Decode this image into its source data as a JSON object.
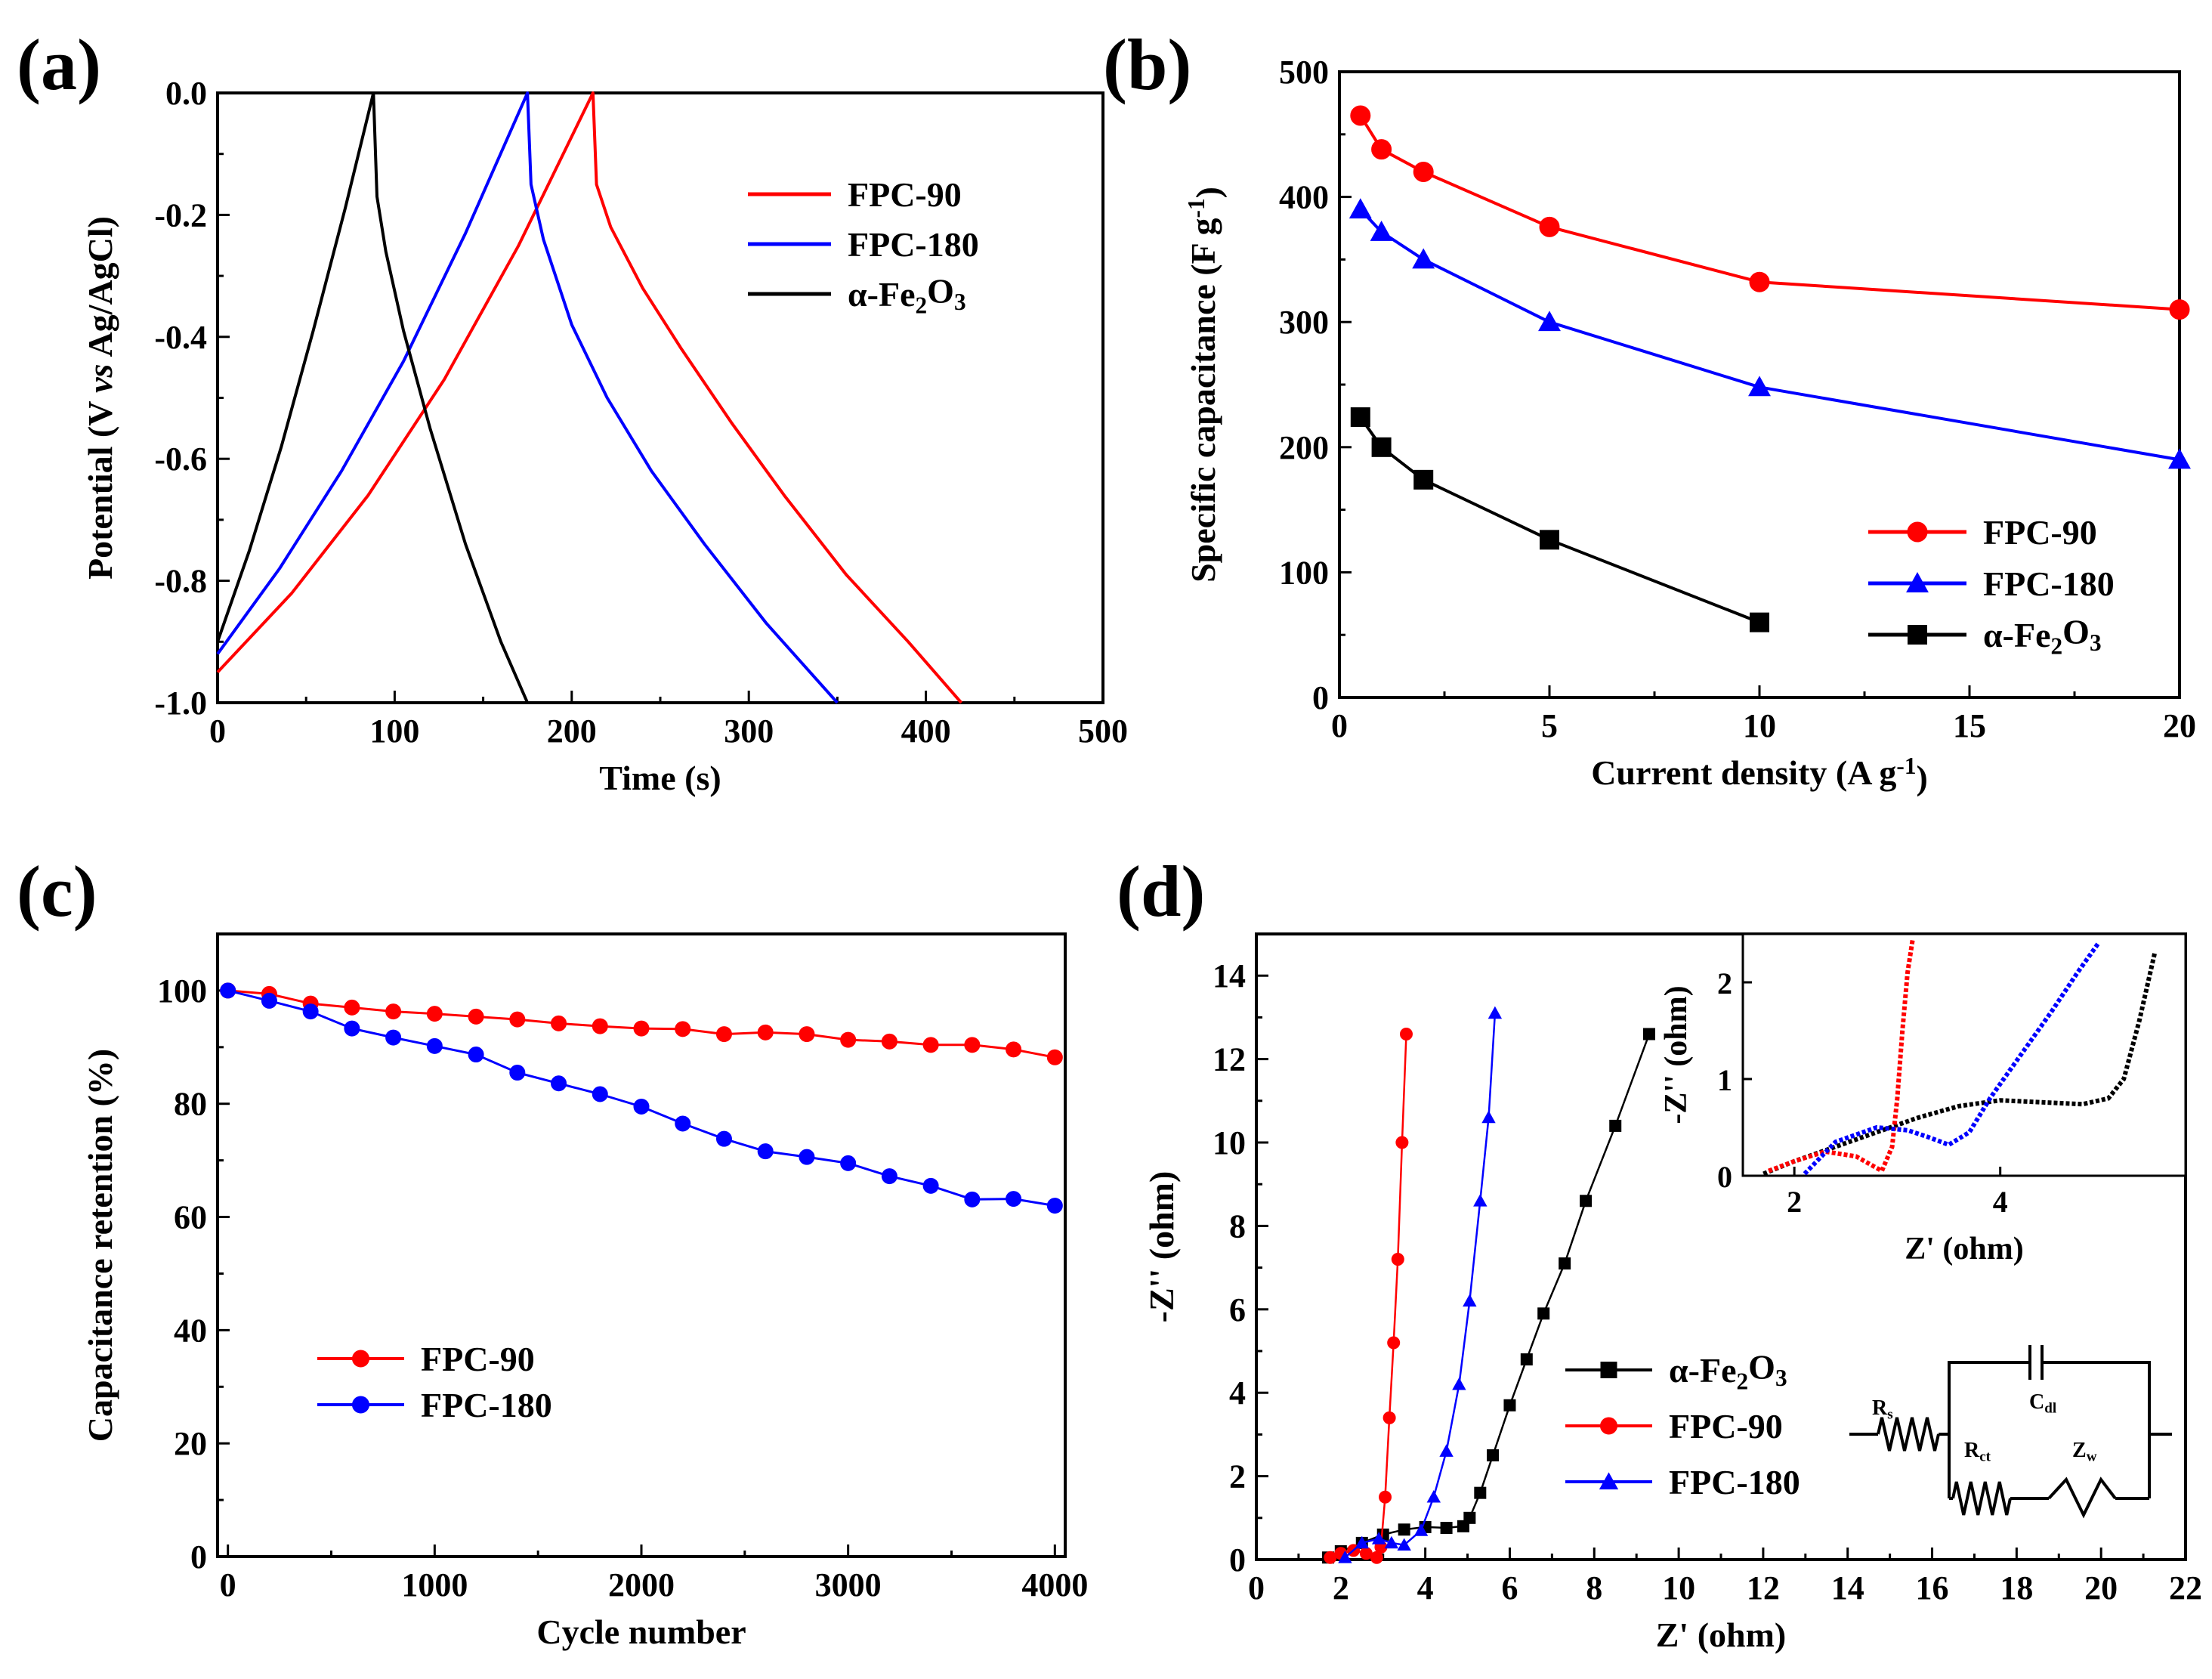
{
  "panels": [
    {
      "id": "a",
      "label": "(a)",
      "chart_data": {
        "type": "line",
        "title": "",
        "xlabel": "Time (s)",
        "ylabel": "Potential (V vs Ag/AgCl)",
        "xlim": [
          0,
          500
        ],
        "ylim": [
          -1.0,
          0.0
        ],
        "xticks": [
          "0",
          "100",
          "200",
          "300",
          "400",
          "500"
        ],
        "yticks": [
          "0.0",
          "-0.2",
          "-0.4",
          "-0.6",
          "-0.8",
          "-1.0"
        ],
        "legend_position": "upper-right",
        "series": [
          {
            "name": "FPC-90",
            "color": "#ff0000",
            "marker": "none",
            "x": [
              0,
              42,
              85,
              128,
              170,
              212,
              214,
              222,
              240,
              262,
              290,
              320,
              355,
              390,
              420
            ],
            "y": [
              -0.95,
              -0.82,
              -0.66,
              -0.47,
              -0.25,
              0.0,
              -0.15,
              -0.22,
              -0.32,
              -0.42,
              -0.54,
              -0.66,
              -0.79,
              -0.9,
              -1.0
            ]
          },
          {
            "name": "FPC-180",
            "color": "#0000ff",
            "marker": "none",
            "x": [
              0,
              35,
              70,
              105,
              140,
              175,
              177,
              184,
              200,
              220,
              245,
              275,
              310,
              350
            ],
            "y": [
              -0.92,
              -0.78,
              -0.62,
              -0.44,
              -0.23,
              0.0,
              -0.15,
              -0.24,
              -0.38,
              -0.5,
              -0.62,
              -0.74,
              -0.87,
              -1.0
            ]
          },
          {
            "name": "α-Fe2O3",
            "color": "#000000",
            "marker": "none",
            "x": [
              0,
              18,
              36,
              54,
              72,
              88,
              90,
              95,
              105,
              120,
              140,
              160,
              175
            ],
            "y": [
              -0.9,
              -0.75,
              -0.58,
              -0.39,
              -0.19,
              0.0,
              -0.17,
              -0.26,
              -0.39,
              -0.55,
              -0.74,
              -0.9,
              -1.0
            ]
          }
        ]
      }
    },
    {
      "id": "b",
      "label": "(b)",
      "chart_data": {
        "type": "line",
        "title": "",
        "xlabel": "Current density (A g-1)",
        "ylabel": "Specific capacitance (F g-1)",
        "xlim": [
          0,
          20
        ],
        "ylim": [
          0,
          500
        ],
        "xticks": [
          "0",
          "5",
          "10",
          "15",
          "20"
        ],
        "yticks": [
          "0",
          "100",
          "200",
          "300",
          "400",
          "500"
        ],
        "legend_position": "lower-right",
        "series": [
          {
            "name": "FPC-90",
            "color": "#ff0000",
            "marker": "circle",
            "x": [
              0.5,
              1,
              2,
              5,
              10,
              20
            ],
            "y": [
              465,
              438,
              420,
              376,
              332,
              310
            ]
          },
          {
            "name": "FPC-180",
            "color": "#0000ff",
            "marker": "triangle",
            "x": [
              0.5,
              1,
              2,
              5,
              10,
              20
            ],
            "y": [
              390,
              372,
              350,
              300,
              248,
              190
            ]
          },
          {
            "name": "α-Fe2O3",
            "color": "#000000",
            "marker": "square",
            "x": [
              0.5,
              1,
              2,
              5,
              10
            ],
            "y": [
              224,
              200,
              174,
              126,
              60
            ]
          }
        ]
      }
    },
    {
      "id": "c",
      "label": "(c)",
      "chart_data": {
        "type": "line",
        "title": "",
        "xlabel": "Cycle number",
        "ylabel": "Capacitance retention (%)",
        "xlim": [
          -50,
          4050
        ],
        "ylim": [
          0,
          110
        ],
        "xticks": [
          "0",
          "1000",
          "2000",
          "3000",
          "4000"
        ],
        "yticks": [
          "0",
          "20",
          "40",
          "60",
          "80",
          "100"
        ],
        "legend_position": "lower-left",
        "series": [
          {
            "name": "FPC-90",
            "color": "#ff0000",
            "marker": "circle",
            "x": [
              0,
              200,
              400,
              600,
              800,
              1000,
              1200,
              1400,
              1600,
              1800,
              2000,
              2200,
              2400,
              2600,
              2800,
              3000,
              3200,
              3400,
              3600,
              3800,
              4000
            ],
            "y": [
              100,
              99.4,
              97.7,
              97,
              96.3,
              95.9,
              95.4,
              94.9,
              94.2,
              93.7,
              93.3,
              93.2,
              92.3,
              92.6,
              92.3,
              91.3,
              91,
              90.4,
              90.4,
              89.6,
              88.2
            ]
          },
          {
            "name": "FPC-180",
            "color": "#0000ff",
            "marker": "circle",
            "x": [
              0,
              200,
              400,
              600,
              800,
              1000,
              1200,
              1400,
              1600,
              1800,
              2000,
              2200,
              2400,
              2600,
              2800,
              3000,
              3200,
              3400,
              3600,
              3800,
              4000
            ],
            "y": [
              100,
              98.2,
              96.3,
              93.3,
              91.7,
              90.2,
              88.7,
              85.5,
              83.6,
              81.7,
              79.5,
              76.5,
              73.8,
              71.6,
              70.6,
              69.5,
              67.2,
              65.5,
              63.1,
              63.2,
              62
            ]
          }
        ]
      }
    },
    {
      "id": "d",
      "label": "(d)",
      "chart_data": {
        "type": "scatter",
        "title": "",
        "xlabel": "Z' (ohm)",
        "ylabel": "-Z'' (ohm)",
        "xlim": [
          0,
          22
        ],
        "ylim": [
          0,
          15
        ],
        "xticks": [
          "0",
          "2",
          "4",
          "6",
          "8",
          "10",
          "12",
          "14",
          "16",
          "18",
          "20",
          "22"
        ],
        "yticks": [
          "0",
          "2",
          "4",
          "6",
          "8",
          "10",
          "12",
          "14"
        ],
        "legend_position": "lower-right",
        "series": [
          {
            "name": "α-Fe2O3",
            "color": "#000000",
            "marker": "square",
            "x": [
              1.7,
              2.0,
              2.5,
              3.0,
              3.5,
              4.0,
              4.5,
              4.9,
              5.05,
              5.3,
              5.6,
              6.0,
              6.4,
              6.8,
              7.3,
              7.8,
              8.5,
              9.3
            ],
            "y": [
              0.05,
              0.2,
              0.4,
              0.6,
              0.72,
              0.78,
              0.76,
              0.8,
              1.0,
              1.6,
              2.5,
              3.7,
              4.8,
              5.9,
              7.1,
              8.6,
              10.4,
              12.6
            ]
          },
          {
            "name": "FPC-90",
            "color": "#ff0000",
            "marker": "circle",
            "x": [
              1.75,
              2.0,
              2.3,
              2.6,
              2.85,
              2.95,
              3.05,
              3.15,
              3.25,
              3.35,
              3.45,
              3.55
            ],
            "y": [
              0.05,
              0.15,
              0.22,
              0.15,
              0.05,
              0.3,
              1.5,
              3.4,
              5.2,
              7.2,
              10.0,
              12.6
            ]
          },
          {
            "name": "FPC-180",
            "color": "#0000ff",
            "marker": "triangle",
            "x": [
              2.1,
              2.5,
              2.9,
              3.2,
              3.5,
              3.9,
              4.2,
              4.5,
              4.8,
              5.05,
              5.3,
              5.5,
              5.65
            ],
            "y": [
              0.05,
              0.4,
              0.5,
              0.4,
              0.35,
              0.7,
              1.5,
              2.6,
              4.2,
              6.2,
              8.6,
              10.6,
              13.1
            ]
          }
        ],
        "inset": {
          "xlabel": "Z' (ohm)",
          "ylabel": "-Z'' (ohm)",
          "xlim": [
            1.5,
            5.8
          ],
          "ylim": [
            0,
            2.5
          ],
          "xticks": [
            "2",
            "4"
          ],
          "yticks": [
            "0",
            "1",
            "2"
          ],
          "series": [
            {
              "name": "α-Fe2O3",
              "color": "#000000",
              "x": [
                1.7,
                2.0,
                2.4,
                2.8,
                3.2,
                3.6,
                4.0,
                4.4,
                4.8,
                5.05,
                5.2,
                5.35,
                5.5
              ],
              "y": [
                0.02,
                0.15,
                0.3,
                0.45,
                0.6,
                0.72,
                0.78,
                0.76,
                0.74,
                0.8,
                1.0,
                1.6,
                2.3
              ]
            },
            {
              "name": "FPC-90",
              "color": "#ff0000",
              "x": [
                1.75,
                2.0,
                2.3,
                2.6,
                2.85,
                2.95,
                3.0,
                3.05,
                3.1,
                3.15
              ],
              "y": [
                0.05,
                0.15,
                0.25,
                0.2,
                0.05,
                0.3,
                0.8,
                1.5,
                2.1,
                2.45
              ]
            },
            {
              "name": "FPC-180",
              "color": "#0000ff",
              "x": [
                2.1,
                2.4,
                2.8,
                3.1,
                3.3,
                3.5,
                3.7,
                3.9,
                4.1,
                4.3,
                4.5,
                4.75,
                4.95
              ],
              "y": [
                0.02,
                0.35,
                0.5,
                0.47,
                0.4,
                0.32,
                0.45,
                0.8,
                1.1,
                1.4,
                1.7,
                2.1,
                2.4
              ]
            }
          ]
        },
        "circuit_labels": [
          "Rs",
          "Cdl",
          "Rct",
          "Zw"
        ]
      }
    }
  ]
}
